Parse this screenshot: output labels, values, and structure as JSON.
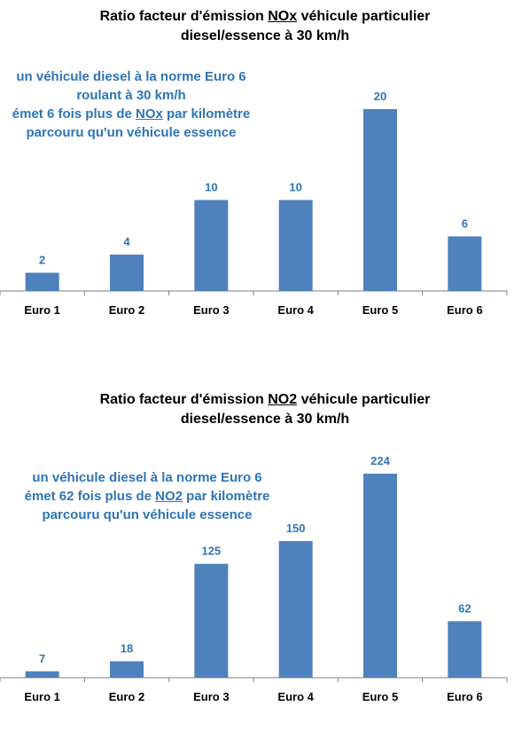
{
  "charts": [
    {
      "title": {
        "line1_pre": "Ratio facteur d'émission ",
        "line1_u": "NOx",
        "line1_post": " véhicule particulier",
        "line2": "diesel/essence à 30 km/h"
      },
      "annotation": {
        "line1": "un véhicule diesel à la norme Euro 6",
        "line2": "roulant à 30 km/h",
        "line3_pre": "émet 6 fois plus de ",
        "line3_u": "NOx",
        "line3_post": " par kilomètre",
        "line4": "parcouru qu'un véhicule essence"
      }
    },
    {
      "title": {
        "line1_pre": "Ratio facteur d'émission ",
        "line1_u": "NO2",
        "line1_post": " véhicule particulier",
        "line2": "diesel/essence à 30 km/h"
      },
      "annotation": {
        "line1": "un véhicule diesel à la norme Euro 6",
        "line2_pre": "émet 62 fois plus de ",
        "line2_u": "NO2",
        "line2_post": " par kilomètre",
        "line3": "parcouru qu'un véhicule essence"
      }
    }
  ],
  "colors": {
    "bar": "#4F81BD",
    "label": "#2E75B6",
    "text": "#000000",
    "axis": "#7F7F7F"
  },
  "chart_data": [
    {
      "type": "bar",
      "title": "Ratio facteur d'émission NOx véhicule particulier diesel/essence à 30 km/h",
      "categories": [
        "Euro 1",
        "Euro 2",
        "Euro 3",
        "Euro 4",
        "Euro 5",
        "Euro 6"
      ],
      "values": [
        2,
        4,
        10,
        10,
        20,
        6
      ],
      "data_labels": [
        "2",
        "4",
        "10",
        "10",
        "20",
        "6"
      ],
      "xlabel": "",
      "ylabel": "",
      "ylim": [
        0,
        20
      ],
      "grid": false,
      "legend": "none"
    },
    {
      "type": "bar",
      "title": "Ratio facteur d'émission NO2 véhicule particulier diesel/essence à 30 km/h",
      "categories": [
        "Euro 1",
        "Euro 2",
        "Euro 3",
        "Euro 4",
        "Euro 5",
        "Euro 6"
      ],
      "values": [
        7,
        18,
        125,
        150,
        224,
        62
      ],
      "data_labels": [
        "7",
        "18",
        "125",
        "150",
        "224",
        "62"
      ],
      "xlabel": "",
      "ylabel": "",
      "ylim": [
        0,
        224
      ],
      "grid": false,
      "legend": "none"
    }
  ]
}
